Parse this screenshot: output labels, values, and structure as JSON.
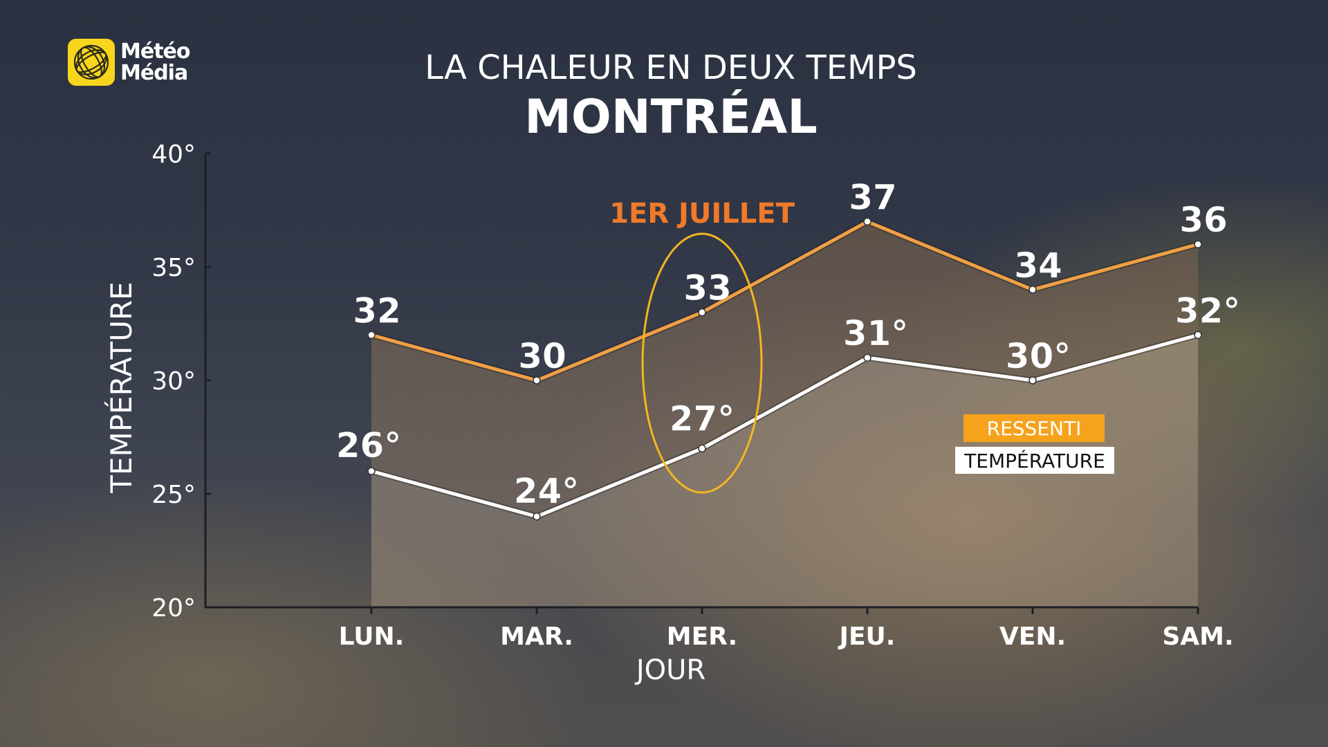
{
  "brand": {
    "line1": "Météo",
    "line2": "Média"
  },
  "header": {
    "title": "LA CHALEUR EN DEUX TEMPS",
    "city": "MONTRÉAL"
  },
  "annotation": {
    "label": "1ER JUILLET",
    "category": "MER."
  },
  "colors": {
    "ressenti": "#f0a046",
    "temperature": "#ffffff",
    "annotation": "#f07a2a",
    "circle": "#f2b720"
  },
  "chart_data": {
    "type": "line",
    "xlabel": "JOUR",
    "ylabel": "TEMPÉRATURE",
    "ylim": [
      20,
      40
    ],
    "yticks": [
      "20°",
      "25°",
      "30°",
      "35°",
      "40°"
    ],
    "categories": [
      "LUN.",
      "MAR.",
      "MER.",
      "JEU.",
      "VEN.",
      "SAM."
    ],
    "series": [
      {
        "name": "RESSENTI",
        "values": [
          32,
          30,
          33,
          37,
          34,
          36
        ],
        "labels": [
          "32",
          "30",
          "33",
          "37",
          "34",
          "36"
        ]
      },
      {
        "name": "TEMPÉRATURE",
        "values": [
          26,
          24,
          27,
          31,
          30,
          32
        ],
        "labels": [
          "26°",
          "24°",
          "27°",
          "31°",
          "30°",
          "32°"
        ]
      }
    ],
    "legend": "right"
  }
}
